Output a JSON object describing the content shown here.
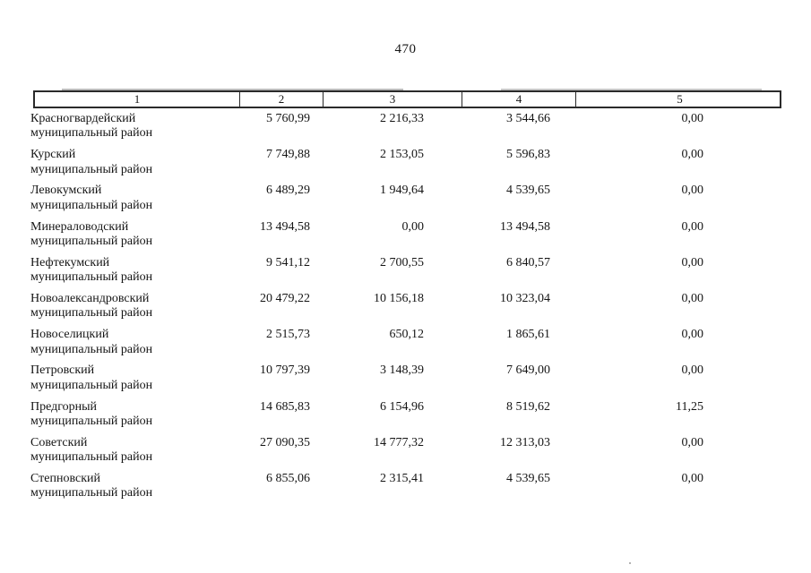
{
  "page": {
    "number": "470"
  },
  "table": {
    "headers": [
      "1",
      "2",
      "3",
      "4",
      "5"
    ],
    "rows": [
      {
        "district": "Красногвардейский",
        "type": "муниципальный район",
        "col2": "5 760,99",
        "col3": "2 216,33",
        "col4": "3 544,66",
        "col5": "0,00"
      },
      {
        "district": "Курский",
        "type": "муниципальный район",
        "col2": "7 749,88",
        "col3": "2 153,05",
        "col4": "5 596,83",
        "col5": "0,00"
      },
      {
        "district": "Левокумский",
        "type": "муниципальный район",
        "col2": "6 489,29",
        "col3": "1 949,64",
        "col4": "4 539,65",
        "col5": "0,00"
      },
      {
        "district": "Минераловодский",
        "type": "муниципальный район",
        "col2": "13 494,58",
        "col3": "0,00",
        "col4": "13 494,58",
        "col5": "0,00"
      },
      {
        "district": "Нефтекумский",
        "type": "муниципальный район",
        "col2": "9 541,12",
        "col3": "2 700,55",
        "col4": "6 840,57",
        "col5": "0,00"
      },
      {
        "district": "Новоалександровский",
        "type": "муниципальный район",
        "col2": "20 479,22",
        "col3": "10 156,18",
        "col4": "10 323,04",
        "col5": "0,00"
      },
      {
        "district": "Новоселицкий",
        "type": "муниципальный район",
        "col2": "2 515,73",
        "col3": "650,12",
        "col4": "1 865,61",
        "col5": "0,00"
      },
      {
        "district": "Петровский",
        "type": "муниципальный район",
        "col2": "10 797,39",
        "col3": "3 148,39",
        "col4": "7 649,00",
        "col5": "0,00"
      },
      {
        "district": "Предгорный",
        "type": "муниципальный район",
        "col2": "14 685,83",
        "col3": "6 154,96",
        "col4": "8 519,62",
        "col5": "11,25"
      },
      {
        "district": "Советский",
        "type": "муниципальный район",
        "col2": "27 090,35",
        "col3": "14 777,32",
        "col4": "12 313,03",
        "col5": "0,00"
      },
      {
        "district": "Степновский",
        "type": "муниципальный район",
        "col2": "6 855,06",
        "col3": "2 315,41",
        "col4": "4 539,65",
        "col5": "0,00"
      }
    ]
  }
}
